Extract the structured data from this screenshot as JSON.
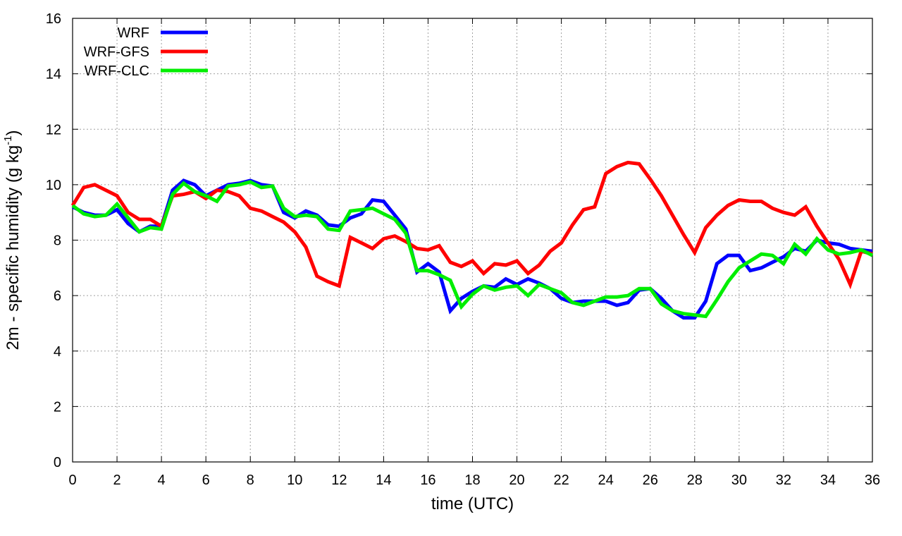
{
  "chart_data": {
    "type": "line",
    "xlabel": "time (UTC)",
    "ylabel_main": "2m - specific humidity (g kg",
    "ylabel_sup": "-1",
    "ylabel_close": ")",
    "xlim": [
      0,
      36
    ],
    "ylim": [
      0,
      16
    ],
    "xticks": [
      0,
      2,
      4,
      6,
      8,
      10,
      12,
      14,
      16,
      18,
      20,
      22,
      24,
      26,
      28,
      30,
      32,
      34,
      36
    ],
    "yticks": [
      0,
      2,
      4,
      6,
      8,
      10,
      12,
      14,
      16
    ],
    "grid": true,
    "legend_position": "top-left",
    "x": [
      0,
      0.5,
      1,
      1.5,
      2,
      2.5,
      3,
      3.5,
      4,
      4.5,
      5,
      5.5,
      6,
      6.5,
      7,
      7.5,
      8,
      8.5,
      9,
      9.5,
      10,
      10.5,
      11,
      11.5,
      12,
      12.5,
      13,
      13.5,
      14,
      14.5,
      15,
      15.5,
      16,
      16.5,
      17,
      17.5,
      18,
      18.5,
      19,
      19.5,
      20,
      20.5,
      21,
      21.5,
      22,
      22.5,
      23,
      23.5,
      24,
      24.5,
      25,
      25.5,
      26,
      26.5,
      27,
      27.5,
      28,
      28.5,
      29,
      29.5,
      30,
      30.5,
      31,
      31.5,
      32,
      32.5,
      33,
      33.5,
      34,
      34.5,
      35,
      35.5,
      36
    ],
    "series": [
      {
        "name": "WRF",
        "color": "#0000ff",
        "values": [
          9.2,
          9.0,
          8.9,
          8.9,
          9.1,
          8.6,
          8.3,
          8.5,
          8.5,
          9.8,
          10.15,
          10.0,
          9.6,
          9.8,
          10.0,
          10.05,
          10.15,
          10.0,
          9.95,
          9.0,
          8.8,
          9.05,
          8.9,
          8.55,
          8.5,
          8.8,
          8.95,
          9.45,
          9.4,
          8.9,
          8.4,
          6.85,
          7.15,
          6.85,
          5.45,
          5.9,
          6.15,
          6.35,
          6.3,
          6.6,
          6.4,
          6.6,
          6.45,
          6.25,
          5.9,
          5.75,
          5.8,
          5.8,
          5.8,
          5.65,
          5.75,
          6.2,
          6.25,
          5.9,
          5.45,
          5.2,
          5.2,
          5.8,
          7.15,
          7.45,
          7.45,
          6.9,
          7.0,
          7.2,
          7.4,
          7.7,
          7.6,
          8.0,
          7.9,
          7.85,
          7.7,
          7.65,
          7.6
        ]
      },
      {
        "name": "WRF-GFS",
        "color": "#ff0000",
        "values": [
          9.25,
          9.9,
          10.0,
          9.8,
          9.6,
          9.0,
          8.75,
          8.75,
          8.5,
          9.6,
          9.65,
          9.75,
          9.5,
          9.8,
          9.75,
          9.6,
          9.15,
          9.05,
          8.85,
          8.65,
          8.3,
          7.75,
          6.7,
          6.5,
          6.35,
          8.1,
          7.9,
          7.7,
          8.05,
          8.15,
          7.95,
          7.7,
          7.65,
          7.8,
          7.2,
          7.05,
          7.25,
          6.8,
          7.15,
          7.1,
          7.25,
          6.8,
          7.1,
          7.6,
          7.9,
          8.55,
          9.1,
          9.2,
          10.4,
          10.65,
          10.8,
          10.75,
          10.2,
          9.6,
          8.9,
          8.2,
          7.55,
          8.45,
          8.9,
          9.25,
          9.45,
          9.4,
          9.4,
          9.15,
          9.0,
          8.9,
          9.2,
          8.5,
          7.9,
          7.3,
          6.4,
          7.6,
          7.5
        ]
      },
      {
        "name": "WRF-CLC",
        "color": "#00ee00",
        "values": [
          9.25,
          8.95,
          8.85,
          8.9,
          9.3,
          8.8,
          8.3,
          8.45,
          8.4,
          9.65,
          10.05,
          9.75,
          9.6,
          9.4,
          9.95,
          10.0,
          10.1,
          9.9,
          9.95,
          9.15,
          8.85,
          8.9,
          8.85,
          8.4,
          8.35,
          9.05,
          9.1,
          9.15,
          8.95,
          8.75,
          8.25,
          6.9,
          6.9,
          6.75,
          6.55,
          5.6,
          6.05,
          6.35,
          6.2,
          6.3,
          6.35,
          6.0,
          6.4,
          6.25,
          6.1,
          5.75,
          5.65,
          5.8,
          5.95,
          5.95,
          6.0,
          6.25,
          6.25,
          5.7,
          5.45,
          5.35,
          5.3,
          5.25,
          5.85,
          6.5,
          7.0,
          7.25,
          7.5,
          7.45,
          7.15,
          7.85,
          7.5,
          8.05,
          7.65,
          7.5,
          7.55,
          7.65,
          7.45
        ]
      }
    ]
  }
}
